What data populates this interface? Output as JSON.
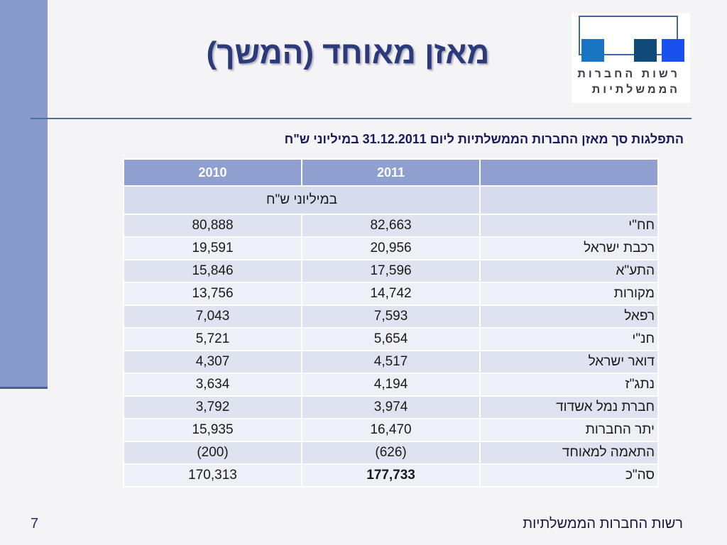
{
  "slide": {
    "title": "מאזן מאוחד (המשך)",
    "subtitle": "התפלגות סך מאזן החברות הממשלתיות ליום 31.12.2011 במיליוני ש\"ח",
    "page_number": "7",
    "footer": "רשות החברות הממשלתיות"
  },
  "logo": {
    "line1": "רשות החברות",
    "line2": "הממשלתיות",
    "colors": [
      "#1a74c4",
      "#104a7a",
      "#1a4ff0"
    ]
  },
  "table": {
    "headers": {
      "label": "",
      "y2011": "2011",
      "y2010": "2010"
    },
    "unit": "במיליוני ש\"ח",
    "rows": [
      {
        "label": "חח\"י",
        "y2011": "82,663",
        "y2010": "80,888"
      },
      {
        "label": "רכבת ישראל",
        "y2011": "20,956",
        "y2010": "19,591"
      },
      {
        "label": "התע\"א",
        "y2011": "17,596",
        "y2010": "15,846"
      },
      {
        "label": "מקורות",
        "y2011": "14,742",
        "y2010": "13,756"
      },
      {
        "label": "רפאל",
        "y2011": "7,593",
        "y2010": "7,043"
      },
      {
        "label": "חנ\"י",
        "y2011": "5,654",
        "y2010": "5,721"
      },
      {
        "label": "דואר ישראל",
        "y2011": "4,517",
        "y2010": "4,307"
      },
      {
        "label": "נתג\"ז",
        "y2011": "4,194",
        "y2010": "3,634"
      },
      {
        "label": "חברת נמל אשדוד",
        "y2011": "3,974",
        "y2010": "3,792"
      },
      {
        "label": "יתר החברות",
        "y2011": "16,470",
        "y2010": "15,935"
      },
      {
        "label": "התאמה למאוחד",
        "y2011": "(626)",
        "y2010": "(200)"
      },
      {
        "label": "סה\"כ",
        "y2011": "177,733",
        "y2010": "170,313"
      }
    ]
  },
  "colors": {
    "accent_bar": "#8899cc",
    "header_bg": "#8e9fd0",
    "title": "#2a3a7a"
  }
}
